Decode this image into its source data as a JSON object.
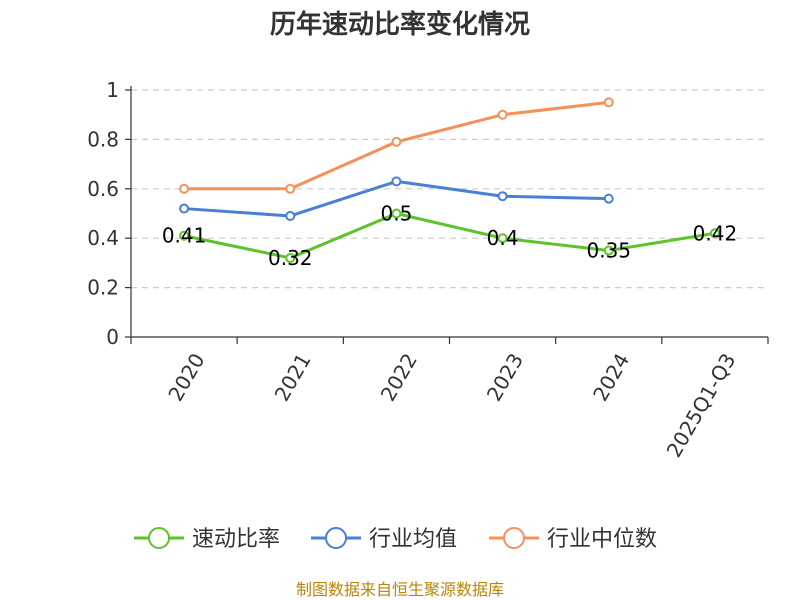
{
  "chart_data": {
    "type": "line",
    "title": "历年速动比率变化情况",
    "categories": [
      "2020",
      "2021",
      "2022",
      "2023",
      "2024",
      "2025Q1-Q3"
    ],
    "ylim": [
      0,
      1
    ],
    "yticks": [
      0,
      0.2,
      0.4,
      0.6,
      0.8,
      1
    ],
    "ytick_labels": [
      "0",
      "0.2",
      "0.4",
      "0.6",
      "0.8",
      "1"
    ],
    "grid": true,
    "legend_position": "bottom",
    "series": [
      {
        "name": "速动比率",
        "color": "#5cc42a",
        "values": [
          0.41,
          0.32,
          0.5,
          0.4,
          0.35,
          0.42
        ],
        "labels": [
          "0.41",
          "0.32",
          "0.5",
          "0.4",
          "0.35",
          "0.42"
        ]
      },
      {
        "name": "行业均值",
        "color": "#4a7fd6",
        "values": [
          0.52,
          0.49,
          0.63,
          0.57,
          0.56,
          null
        ]
      },
      {
        "name": "行业中位数",
        "color": "#f5905a",
        "values": [
          0.6,
          0.6,
          0.79,
          0.9,
          0.95,
          null
        ]
      }
    ]
  },
  "source": "制图数据来自恒生聚源数据库"
}
